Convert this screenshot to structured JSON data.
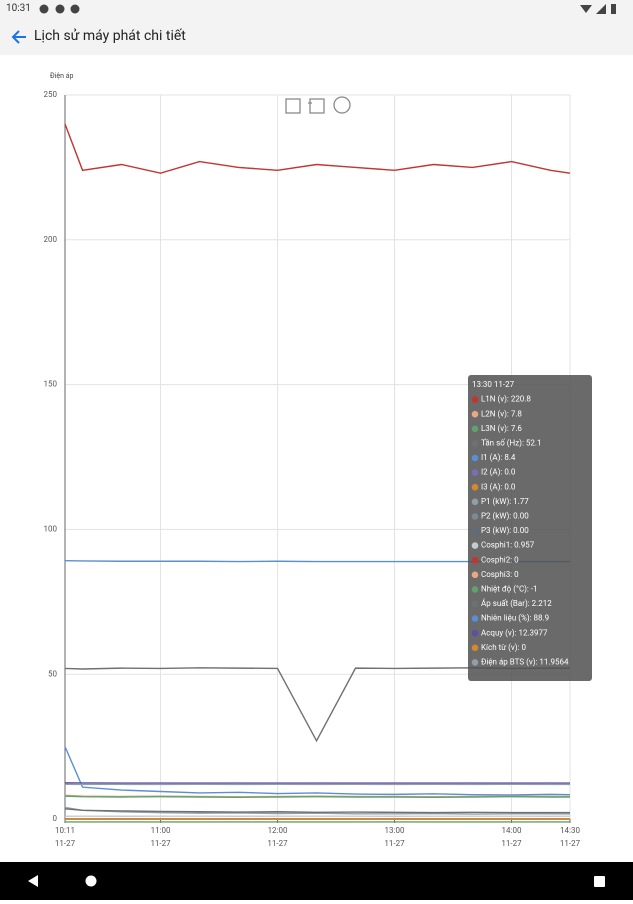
{
  "status_bar": {
    "time": "10:31"
  },
  "app_bar": {
    "title": "Lịch sử máy phát chi tiết"
  },
  "chart_data": {
    "type": "line",
    "y_axis_label": "Điện áp",
    "x": [
      "11-27 10:11",
      "11-27 10:20",
      "11-27 10:40",
      "11-27 11:00",
      "11-27 11:20",
      "11-27 11:40",
      "11-27 12:00",
      "11-27 12:20",
      "11-27 12:40",
      "11-27 13:00",
      "11-27 13:20",
      "11-27 13:40",
      "11-27 14:00",
      "11-27 14:20",
      "11-27 14:30"
    ],
    "xlim": [
      "11-27 10:11",
      "11-27 14:30"
    ],
    "xticks": [
      {
        "value": "11-27 10:11",
        "label": [
          "10:11",
          "11-27"
        ]
      },
      {
        "value": "11-27 11:00",
        "label": [
          "11:00",
          "11-27"
        ]
      },
      {
        "value": "11-27 12:00",
        "label": [
          "12:00",
          "11-27"
        ]
      },
      {
        "value": "11-27 13:00",
        "label": [
          "13:00",
          "11-27"
        ]
      },
      {
        "value": "11-27 14:00",
        "label": [
          "14:00",
          "11-27"
        ]
      },
      {
        "value": "11-27 14:30",
        "label": [
          "14:30",
          "11-27"
        ]
      }
    ],
    "ylim": [
      0,
      250
    ],
    "yticks": [
      0,
      50,
      100,
      150,
      200,
      250
    ],
    "grid": true,
    "series": [
      {
        "name": "L1N (v)",
        "color": "#c23531",
        "values": [
          240,
          224,
          226,
          223,
          227,
          225,
          224,
          226,
          225,
          224,
          226,
          225,
          227,
          224,
          223
        ]
      },
      {
        "name": "L2N (v)",
        "color": "#e8a882",
        "values": [
          8.2,
          7.9,
          7.8,
          7.9,
          7.8,
          7.7,
          7.8,
          7.9,
          7.8,
          7.8,
          7.7,
          7.8,
          7.9,
          7.8,
          7.8
        ]
      },
      {
        "name": "L3N (v)",
        "color": "#61a06f",
        "values": [
          7.9,
          7.7,
          7.6,
          7.7,
          7.6,
          7.5,
          7.6,
          7.7,
          7.6,
          7.6,
          7.5,
          7.6,
          7.7,
          7.6,
          7.6
        ]
      },
      {
        "name": "Tần số (Hz)",
        "color": "#6e7074",
        "values": [
          52,
          51.8,
          52.1,
          52,
          52.2,
          52.1,
          52,
          27,
          52.1,
          52,
          52.1,
          52.2,
          52,
          52.1,
          52.1
        ]
      },
      {
        "name": "I1 (A)",
        "color": "#5a8fd4",
        "values": [
          25,
          11,
          10,
          9.5,
          9,
          9.2,
          8.8,
          9,
          8.6,
          8.5,
          8.7,
          8.4,
          8.3,
          8.5,
          8.4
        ]
      },
      {
        "name": "I2 (A)",
        "color": "#7b6fb3",
        "values": [
          0,
          0,
          0,
          0,
          0,
          0,
          0,
          0,
          0,
          0,
          0,
          0,
          0,
          0,
          0
        ]
      },
      {
        "name": "I3 (A)",
        "color": "#d48a2a",
        "values": [
          0,
          0,
          0,
          0,
          0,
          0,
          0,
          0,
          0,
          0,
          0,
          0,
          0,
          0,
          0
        ]
      },
      {
        "name": "P1 (kW)",
        "color": "#91a0a8",
        "values": [
          4,
          3,
          2.5,
          2.2,
          2,
          2.1,
          1.9,
          2,
          1.8,
          1.8,
          1.9,
          1.7,
          1.8,
          1.8,
          1.77
        ]
      },
      {
        "name": "P2 (kW)",
        "color": "#7a8a96",
        "values": [
          0,
          0,
          0,
          0,
          0,
          0,
          0,
          0,
          0,
          0,
          0,
          0,
          0,
          0,
          0
        ]
      },
      {
        "name": "P3 (kW)",
        "color": "#5d6d7e",
        "values": [
          0,
          0,
          0,
          0,
          0,
          0,
          0,
          0,
          0,
          0,
          0,
          0,
          0,
          0,
          0
        ]
      },
      {
        "name": "Cosphi1",
        "color": "#c4ccd3",
        "values": [
          0.95,
          0.96,
          0.95,
          0.96,
          0.957,
          0.95,
          0.96,
          0.957,
          0.96,
          0.95,
          0.957,
          0.96,
          0.957,
          0.95,
          0.957
        ]
      },
      {
        "name": "Cosphi2",
        "color": "#c23531",
        "values": [
          0,
          0,
          0,
          0,
          0,
          0,
          0,
          0,
          0,
          0,
          0,
          0,
          0,
          0,
          0
        ]
      },
      {
        "name": "Cosphi3",
        "color": "#e8a882",
        "values": [
          0,
          0,
          0,
          0,
          0,
          0,
          0,
          0,
          0,
          0,
          0,
          0,
          0,
          0,
          0
        ]
      },
      {
        "name": "Nhiệt độ (°C)",
        "color": "#61a06f",
        "values": [
          -1,
          -1,
          -1,
          -1,
          -1,
          -1,
          -1,
          -1,
          -1,
          -1,
          -1,
          -1,
          -1,
          -1,
          -1
        ]
      },
      {
        "name": "Áp suất (Bar)",
        "color": "#6e7074",
        "values": [
          3.5,
          3,
          2.8,
          2.6,
          2.5,
          2.4,
          2.5,
          2.3,
          2.4,
          2.3,
          2.2,
          2.3,
          2.2,
          2.2,
          2.212
        ]
      },
      {
        "name": "Nhiên liệu (%)",
        "color": "#5a8fd4",
        "values": [
          89.2,
          89.1,
          89,
          89,
          89,
          88.9,
          89,
          88.9,
          88.9,
          88.9,
          88.9,
          88.9,
          88.9,
          88.9,
          88.9
        ]
      },
      {
        "name": "Acquy (v)",
        "color": "#5e4fa2",
        "values": [
          12.5,
          12.45,
          12.4,
          12.42,
          12.4,
          12.41,
          12.4,
          12.4,
          12.4,
          12.4,
          12.4,
          12.4,
          12.4,
          12.4,
          12.3977
        ]
      },
      {
        "name": "Kích từ (v)",
        "color": "#d48a2a",
        "values": [
          0,
          0,
          0,
          0,
          0,
          0,
          0,
          0,
          0,
          0,
          0,
          0,
          0,
          0,
          0
        ]
      },
      {
        "name": "Điện áp BTS (v)",
        "color": "#91a0a8",
        "values": [
          12,
          11.95,
          11.96,
          11.95,
          11.96,
          11.95,
          11.96,
          11.95,
          11.96,
          11.95,
          11.96,
          11.95,
          11.96,
          11.95,
          11.9564
        ]
      }
    ]
  },
  "tooltip": {
    "title": "13:30 11-27",
    "lines": [
      "L1N (v): 220.8",
      "L2N (v): 7.8",
      "L3N (v): 7.6",
      "Tần số (Hz): 52.1",
      "I1 (A): 8.4",
      "I2 (A): 0.0",
      "I3 (A): 0.0",
      "P1 (kW): 1.77",
      "P2 (kW): 0.00",
      "P3 (kW): 0.00",
      "Cosphi1: 0.957",
      "Cosphi2: 0",
      "Cosphi3: 0",
      "Nhiệt độ (°C): -1",
      "Áp suất (Bar): 2.212",
      "Nhiên liệu (%): 88.9",
      "Acquy (v): 12.3977",
      "Kích từ (v): 0",
      "Điện áp BTS (v): 11.9564"
    ]
  }
}
